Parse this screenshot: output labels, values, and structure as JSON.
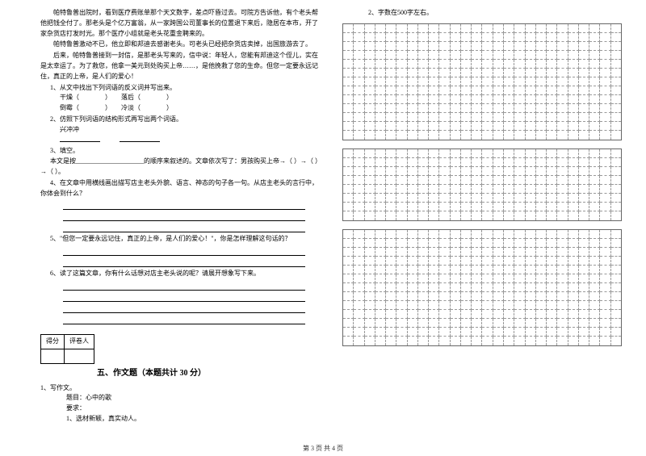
{
  "passage": {
    "p1": "帕特鲁普出院时，看到医疗费账单那个天文数字，差点吓昏过去。可院方告诉他，有个老头帮他把钱全付了。那老头是个亿万富翁，从一家跨国公司董事长的位置退下来后，隐居在本市，开了家杂货店打发时光。那个医疗小组就是老头花重金聘来的。",
    "p2": "帕特鲁普激动不已，他立即和邦迪去感谢老头。可老头已经把杂货店卖掉，出国旅游去了。",
    "p3": "后来，帕特鲁普接到一封信，是那老头写来的，信中说：年轻人，您能有邦迪这个侄儿，实在是太幸运了。为了救您，他拿一美元到处购买上帝……，是他挽救了您的生命。但您一定要永远记住，真正的上帝，是人们的爱心！"
  },
  "questions": {
    "q1": {
      "label": "1、从文中找出下列词语的反义词并写出来。",
      "a": "干燥",
      "b": "落后",
      "c": "倒霉",
      "d": "冷淡"
    },
    "q2": {
      "label": "2、仿照下列词语的结构形式再写出两个词语。",
      "word": "兴冲冲"
    },
    "q3": {
      "label": "3、填空。",
      "line": "本文是按_____________________的顺序来叙述的。文章依次写了：男孩购买上帝→（    ）→（    ）→（                ）。"
    },
    "q4": {
      "label": "4、在文章中用横线画出描写店主老头外貌、语言、神态的句子各一句。从店主老头的言行中，你体会到什么？"
    },
    "q5": {
      "label": "5、\"但您一定要永远记住，真正的上帝，是人们的爱心！\"，你是怎样理解这句话的？"
    },
    "q6": {
      "label": "6、读了这篇文章，你有什么话想对店主老头说的呢？请展开想象写下来。"
    }
  },
  "scoreTable": {
    "h1": "得分",
    "h2": "评卷人"
  },
  "section5": {
    "title": "五、作文题（本题共计 30 分）"
  },
  "composition": {
    "n": "1、写作文。",
    "topic": "题目：心中的歌",
    "req": "要求：",
    "r1": "1、选材新颖，真实动人。",
    "r2": "2、字数在500字左右。"
  },
  "grid": {
    "cols": 26,
    "block1Rows": 13,
    "block2Rows": 8,
    "block3Rows": 13
  },
  "footer": "第 3 页 共 4 页",
  "colors": {
    "text": "#000000",
    "bg": "#ffffff",
    "gridBorder": "#666666",
    "gridDash": "#999999"
  }
}
